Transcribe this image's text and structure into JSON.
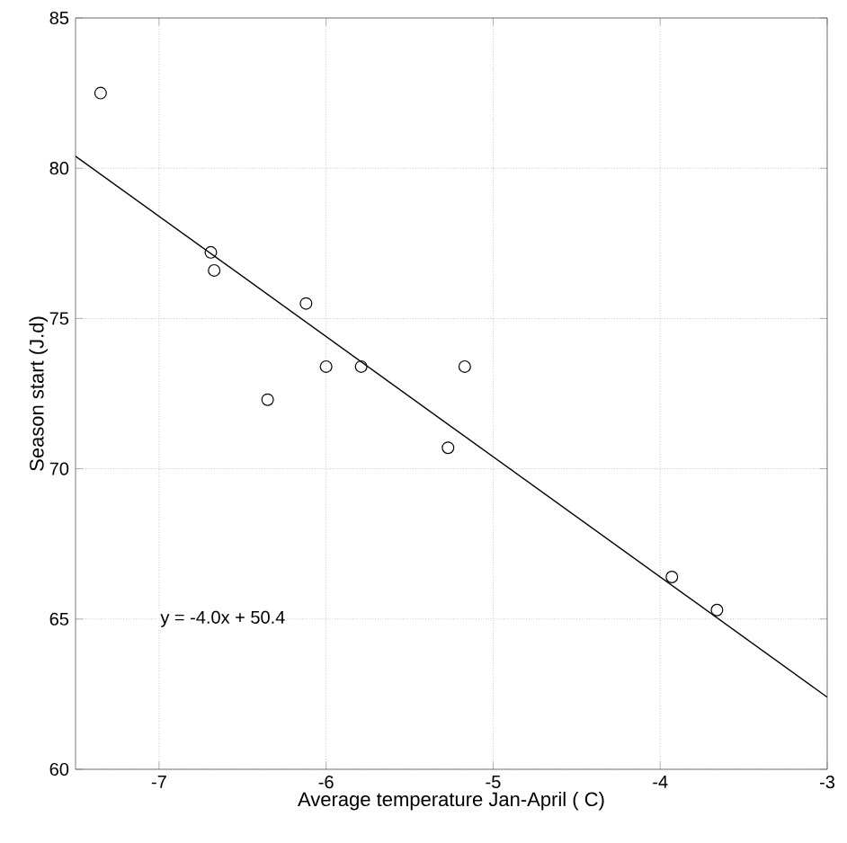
{
  "chart_data": {
    "type": "scatter",
    "xlabel": "Average temperature Jan-April ( C)",
    "ylabel": "Season start (J.d)",
    "xlim": [
      -7.5,
      -3
    ],
    "ylim": [
      60,
      85
    ],
    "xticks": [
      -7,
      -6,
      -5,
      -4,
      -3
    ],
    "yticks": [
      60,
      65,
      70,
      75,
      80,
      85
    ],
    "grid": true,
    "series": [
      {
        "color": "#000000",
        "marker": "circle",
        "x": [
          -7.35,
          -6.69,
          -6.67,
          -6.12,
          -6.0,
          -5.79,
          -6.35,
          -5.27,
          -5.17,
          -3.93,
          -3.66
        ],
        "values": [
          82.5,
          77.2,
          76.6,
          75.5,
          73.4,
          73.4,
          72.3,
          70.7,
          73.4,
          66.4,
          65.3
        ]
      },
      {
        "type": "line",
        "color": "#000000",
        "line_style": "solid",
        "x": [
          -7.5,
          -3
        ],
        "values": [
          80.4,
          62.4
        ]
      }
    ],
    "annotations": [
      "y = -4.0x + 50.4"
    ]
  }
}
